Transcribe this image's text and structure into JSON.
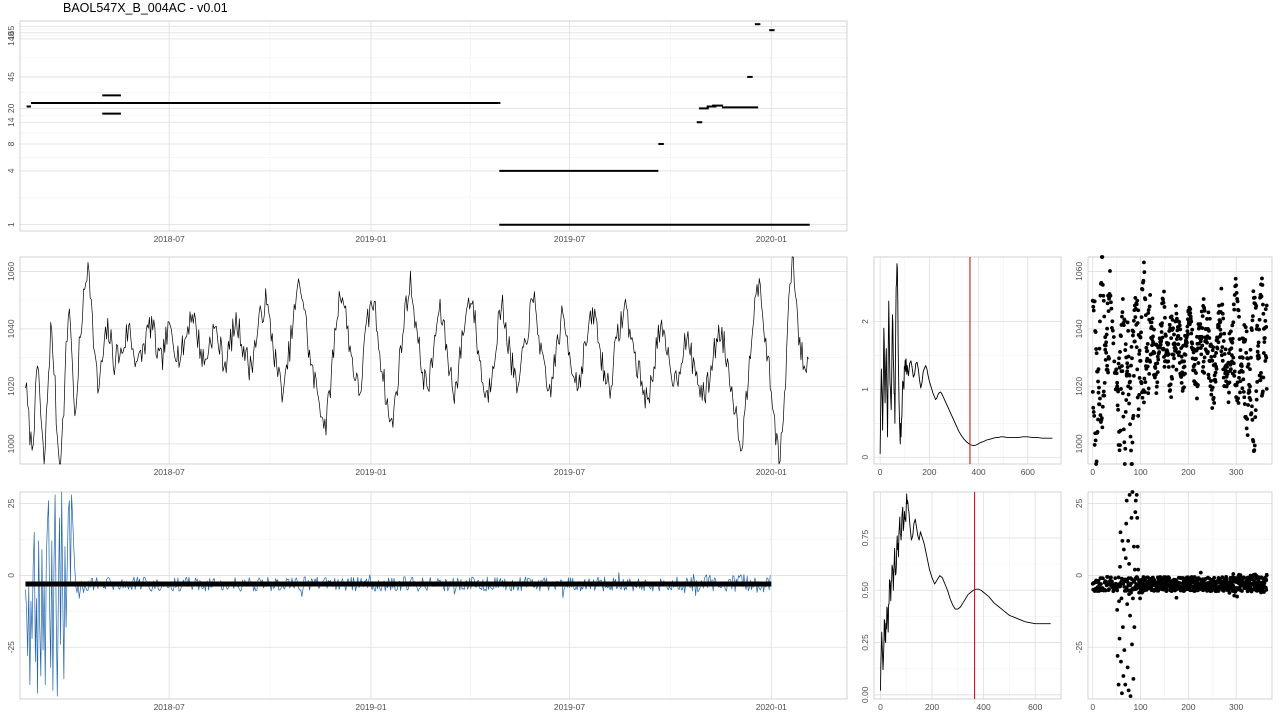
{
  "page": {
    "title": "BAOL547X_B_004AC - v0.01"
  },
  "chart_data": [
    {
      "id": "segments",
      "type": "line",
      "x_axis": {
        "type": "date",
        "ticks": [
          "2018-07",
          "2019-01",
          "2019-07",
          "2020-01"
        ],
        "tick_dates": [
          "2018-07-01",
          "2019-01-01",
          "2019-07-01",
          "2020-01-01"
        ],
        "range": [
          "2018-02-15",
          "2020-03-10"
        ]
      },
      "y_axis": {
        "scale": "log",
        "ticks": [
          1,
          4,
          8,
          14,
          20,
          45,
          120,
          140,
          165
        ],
        "tick_labels_printed": [
          "1",
          "4",
          "8",
          "14",
          "20",
          "45",
          "140",
          "165"
        ],
        "range": [
          0.85,
          190
        ]
      },
      "grid": true,
      "segments": [
        {
          "x0": "2018-02-21",
          "x1": "2018-02-25",
          "y": 21
        },
        {
          "x0": "2018-02-25",
          "x1": "2019-04-27",
          "y": 23
        },
        {
          "x0": "2018-05-01",
          "x1": "2018-05-18",
          "y": 28
        },
        {
          "x0": "2018-05-01",
          "x1": "2018-05-18",
          "y": 17.5
        },
        {
          "x0": "2019-04-27",
          "x1": "2019-04-29",
          "y": 23
        },
        {
          "x0": "2019-04-28",
          "x1": "2019-09-20",
          "y": 4
        },
        {
          "x0": "2019-04-28",
          "x1": "2020-02-05",
          "y": 1
        },
        {
          "x0": "2019-09-20",
          "x1": "2019-09-25",
          "y": 8
        },
        {
          "x0": "2019-10-25",
          "x1": "2019-10-30",
          "y": 14
        },
        {
          "x0": "2019-10-27",
          "x1": "2019-11-05",
          "y": 20
        },
        {
          "x0": "2019-11-03",
          "x1": "2019-11-12",
          "y": 21
        },
        {
          "x0": "2019-11-08",
          "x1": "2019-11-18",
          "y": 21.5
        },
        {
          "x0": "2019-11-17",
          "x1": "2019-12-20",
          "y": 20.5
        },
        {
          "x0": "2019-12-10",
          "x1": "2019-12-15",
          "y": 45
        },
        {
          "x0": "2019-12-17",
          "x1": "2019-12-22",
          "y": 175
        },
        {
          "x0": "2019-12-30",
          "x1": "2020-01-04",
          "y": 150
        }
      ]
    },
    {
      "id": "series",
      "type": "line",
      "x_axis": {
        "type": "date",
        "ticks": [
          "2018-07",
          "2019-01",
          "2019-07",
          "2020-01"
        ],
        "tick_dates": [
          "2018-07-01",
          "2019-01-01",
          "2019-07-01",
          "2020-01-01"
        ],
        "range": [
          "2018-02-15",
          "2020-03-10"
        ]
      },
      "y_axis": {
        "ticks": [
          1000,
          1020,
          1040,
          1060
        ],
        "range": [
          993,
          1065
        ]
      },
      "grid": true,
      "start": "2018-02-20",
      "end": "2020-02-05",
      "points": [
        1022,
        1008,
        998,
        1012,
        1030,
        1005,
        992,
        1018,
        1040,
        1028,
        1004,
        990,
        1010,
        1035,
        1050,
        1022,
        1008,
        1032,
        1046,
        1055,
        1066,
        1045,
        1030,
        1018,
        1026,
        1034,
        1040,
        1036,
        1028,
        1032,
        1030,
        1034,
        1038,
        1040,
        1033,
        1030,
        1028,
        1032,
        1036,
        1040,
        1042,
        1036,
        1030,
        1028,
        1034,
        1038,
        1040,
        1036,
        1032,
        1030,
        1034,
        1038,
        1044,
        1046,
        1040,
        1035,
        1030,
        1028,
        1034,
        1038,
        1040,
        1036,
        1032,
        1028,
        1030,
        1036,
        1040,
        1042,
        1038,
        1034,
        1030,
        1026,
        1030,
        1036,
        1042,
        1046,
        1050,
        1044,
        1038,
        1030,
        1024,
        1020,
        1018,
        1028,
        1036,
        1044,
        1052,
        1056,
        1050,
        1040,
        1030,
        1024,
        1020,
        1016,
        1010,
        1006,
        1014,
        1026,
        1038,
        1048,
        1054,
        1048,
        1040,
        1032,
        1026,
        1020,
        1018,
        1030,
        1040,
        1046,
        1050,
        1044,
        1034,
        1026,
        1018,
        1010,
        1006,
        1014,
        1024,
        1034,
        1044,
        1052,
        1056,
        1048,
        1038,
        1030,
        1024,
        1020,
        1022,
        1030,
        1040,
        1046,
        1044,
        1036,
        1028,
        1022,
        1018,
        1024,
        1034,
        1042,
        1048,
        1052,
        1046,
        1036,
        1028,
        1020,
        1016,
        1020,
        1028,
        1036,
        1044,
        1048,
        1042,
        1034,
        1028,
        1022,
        1018,
        1026,
        1034,
        1040,
        1046,
        1050,
        1044,
        1034,
        1026,
        1020,
        1018,
        1024,
        1032,
        1038,
        1044,
        1040,
        1034,
        1028,
        1024,
        1020,
        1026,
        1032,
        1038,
        1042,
        1046,
        1040,
        1032,
        1026,
        1022,
        1020,
        1026,
        1034,
        1040,
        1044,
        1048,
        1042,
        1036,
        1030,
        1026,
        1022,
        1018,
        1014,
        1020,
        1028,
        1036,
        1040,
        1036,
        1032,
        1028,
        1024,
        1022,
        1026,
        1032,
        1036,
        1034,
        1030,
        1026,
        1022,
        1018,
        1016,
        1020,
        1026,
        1032,
        1036,
        1040,
        1036,
        1030,
        1024,
        1018,
        1010,
        1004,
        1000,
        1012,
        1026,
        1040,
        1052,
        1056,
        1048,
        1040,
        1030,
        1020,
        1010,
        1000,
        995,
        1008,
        1030,
        1054,
        1066,
        1050,
        1036,
        1030,
        1026,
        1030
      ]
    },
    {
      "id": "acf-top",
      "type": "line",
      "x_axis": {
        "ticks": [
          0,
          200,
          400,
          600
        ],
        "range": [
          -25,
          735
        ]
      },
      "y_axis": {
        "ticks": [
          0,
          1,
          2
        ],
        "range": [
          -0.1,
          2.95
        ]
      },
      "grid": true,
      "reference_line": {
        "x": 365,
        "color": "#cc0000"
      },
      "x": [
        0,
        5,
        10,
        15,
        20,
        25,
        30,
        35,
        40,
        45,
        50,
        55,
        60,
        65,
        70,
        75,
        80,
        85,
        90,
        95,
        100,
        105,
        110,
        115,
        120,
        125,
        130,
        135,
        140,
        145,
        150,
        155,
        160,
        165,
        170,
        175,
        180,
        185,
        190,
        195,
        200,
        205,
        210,
        215,
        220,
        225,
        230,
        235,
        240,
        245,
        250,
        255,
        260,
        265,
        270,
        275,
        280,
        285,
        290,
        295,
        300,
        310,
        320,
        330,
        340,
        350,
        360,
        370,
        380,
        390,
        400,
        410,
        420,
        430,
        440,
        450,
        460,
        470,
        480,
        490,
        500,
        520,
        540,
        560,
        580,
        600,
        620,
        640,
        660,
        680,
        700
      ],
      "y": [
        0.05,
        1.3,
        0.4,
        1.9,
        0.8,
        1.6,
        0.3,
        2.3,
        1.1,
        0.7,
        2.1,
        1.3,
        0.5,
        2.5,
        2.78,
        1.2,
        0.4,
        0.3,
        0.9,
        1.05,
        1.3,
        1.45,
        1.35,
        1.2,
        1.38,
        1.42,
        1.32,
        1.18,
        1.22,
        1.38,
        1.4,
        1.3,
        1.14,
        1.02,
        1.1,
        1.26,
        1.31,
        1.35,
        1.3,
        1.2,
        1.12,
        1.06,
        1.0,
        0.94,
        0.9,
        0.85,
        0.87,
        0.92,
        0.95,
        0.96,
        0.94,
        0.9,
        0.86,
        0.82,
        0.78,
        0.74,
        0.7,
        0.66,
        0.62,
        0.58,
        0.54,
        0.46,
        0.38,
        0.32,
        0.27,
        0.23,
        0.2,
        0.18,
        0.17,
        0.18,
        0.2,
        0.22,
        0.23,
        0.25,
        0.26,
        0.27,
        0.28,
        0.29,
        0.29,
        0.3,
        0.3,
        0.29,
        0.29,
        0.29,
        0.3,
        0.3,
        0.29,
        0.29,
        0.28,
        0.28,
        0.28
      ]
    },
    {
      "id": "scatter-top",
      "type": "scatter",
      "x_axis": {
        "ticks": [
          0,
          100,
          200,
          300
        ],
        "range": [
          -10,
          375
        ]
      },
      "y_axis": {
        "ticks": [
          1000,
          1020,
          1040,
          1060
        ],
        "range": [
          993,
          1065
        ]
      },
      "grid": true
    },
    {
      "id": "residual",
      "type": "line",
      "x_axis": {
        "type": "date",
        "ticks": [
          "2018-07",
          "2019-01",
          "2019-07",
          "2020-01"
        ],
        "tick_dates": [
          "2018-07-01",
          "2019-01-01",
          "2019-07-01",
          "2020-01-01"
        ],
        "range": [
          "2018-02-15",
          "2020-03-10"
        ]
      },
      "y_axis": {
        "ticks": [
          -25,
          0,
          25
        ],
        "range": [
          -43,
          29
        ]
      },
      "grid": true,
      "start": "2018-02-20",
      "end": "2020-01-01",
      "baseline": {
        "y": -3,
        "color": "#000000"
      },
      "series_color": "#2166ac",
      "burst": [
        -5,
        -12,
        -28,
        -4,
        -38,
        -9,
        -22,
        3,
        15,
        -30,
        -8,
        -41,
        12,
        -18,
        -35,
        9,
        -26,
        -2,
        -38,
        6,
        18,
        26,
        -10,
        -32,
        12,
        -40,
        4,
        28,
        -14,
        -42,
        -6,
        20,
        -24,
        30,
        -8,
        -36,
        10,
        -18,
        2,
        22,
        26,
        -3,
        28,
        20,
        10,
        2,
        -4,
        -6,
        -3,
        -8,
        -5,
        -2,
        -4,
        -6,
        -3
      ],
      "noise_amplitude": 2.5,
      "late_noise_amplitude": 3.5
    },
    {
      "id": "acf-bottom",
      "type": "line",
      "x_axis": {
        "ticks": [
          0,
          200,
          400,
          600
        ],
        "range": [
          -25,
          700
        ]
      },
      "y_axis": {
        "ticks": [
          0.0,
          0.25,
          0.5,
          0.75
        ],
        "tick_labels_printed": [
          "0.00",
          "0.25",
          "0.50",
          "0.75"
        ],
        "range": [
          -0.02,
          0.97
        ]
      },
      "grid": true,
      "reference_line": {
        "x": 365,
        "color": "#cc0000"
      },
      "x": [
        0,
        5,
        10,
        15,
        20,
        25,
        30,
        35,
        40,
        45,
        50,
        55,
        60,
        65,
        70,
        75,
        80,
        85,
        90,
        95,
        100,
        105,
        110,
        115,
        120,
        125,
        130,
        135,
        140,
        145,
        150,
        155,
        160,
        170,
        180,
        190,
        200,
        210,
        220,
        230,
        240,
        250,
        260,
        270,
        280,
        290,
        300,
        310,
        320,
        330,
        340,
        350,
        360,
        370,
        380,
        390,
        400,
        420,
        440,
        460,
        480,
        500,
        520,
        540,
        560,
        580,
        600,
        620,
        640,
        660
      ],
      "y": [
        0.02,
        0.3,
        0.12,
        0.36,
        0.25,
        0.42,
        0.3,
        0.55,
        0.45,
        0.62,
        0.5,
        0.7,
        0.58,
        0.76,
        0.66,
        0.85,
        0.74,
        0.88,
        0.8,
        0.84,
        0.9,
        0.93,
        0.88,
        0.8,
        0.74,
        0.76,
        0.82,
        0.84,
        0.8,
        0.76,
        0.74,
        0.78,
        0.76,
        0.72,
        0.66,
        0.6,
        0.56,
        0.53,
        0.55,
        0.57,
        0.56,
        0.53,
        0.5,
        0.46,
        0.43,
        0.41,
        0.41,
        0.42,
        0.44,
        0.46,
        0.48,
        0.49,
        0.5,
        0.505,
        0.505,
        0.5,
        0.49,
        0.47,
        0.44,
        0.42,
        0.4,
        0.38,
        0.37,
        0.36,
        0.35,
        0.345,
        0.34,
        0.34,
        0.34,
        0.34
      ]
    },
    {
      "id": "scatter-bottom",
      "type": "scatter",
      "x_axis": {
        "ticks": [
          0,
          100,
          200,
          300
        ],
        "range": [
          -10,
          375
        ]
      },
      "y_axis": {
        "ticks": [
          -25,
          0,
          25
        ],
        "range": [
          -43,
          29
        ]
      },
      "grid": true
    }
  ]
}
